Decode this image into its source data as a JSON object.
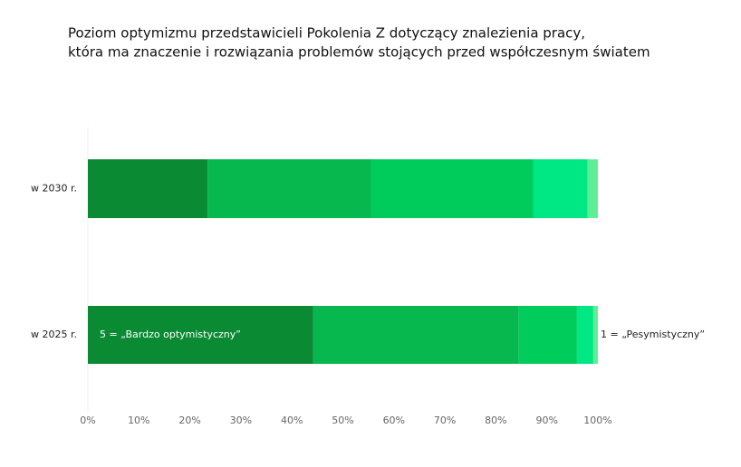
{
  "chart_data": {
    "type": "stacked-barh",
    "title": [
      "Poziom optymizmu przedstawicieli Pokolenia Z dotyczący znalezienia pracy,",
      "która ma znaczenie i rozwiązania problemów stojących przed współczesnym światem"
    ],
    "categories": [
      "w 2030 r.",
      "w 2025 r."
    ],
    "series": [
      {
        "color": "#0b8a34",
        "values": [
          23.5,
          44.2
        ]
      },
      {
        "color": "#06b84e",
        "values": [
          32.0,
          40.3
        ]
      },
      {
        "color": "#00cc5c",
        "values": [
          31.8,
          11.4
        ]
      },
      {
        "color": "#00e884",
        "values": [
          10.7,
          3.2
        ]
      },
      {
        "color": "#5fee98",
        "values": [
          2.0,
          0.9
        ]
      }
    ],
    "annotations": [
      "5 = „Bardzo optymistyczny”",
      "1 = „Pesymistyczny”"
    ],
    "xlim": [
      0,
      100
    ],
    "xticks": [
      {
        "value": 0,
        "label": "0%"
      },
      {
        "value": 10,
        "label": "10%"
      },
      {
        "value": 20,
        "label": "20%"
      },
      {
        "value": 30,
        "label": "30%"
      },
      {
        "value": 40,
        "label": "40%"
      },
      {
        "value": 50,
        "label": "50%"
      },
      {
        "value": 60,
        "label": "60%"
      },
      {
        "value": 70,
        "label": "70%"
      },
      {
        "value": 80,
        "label": "80%"
      },
      {
        "value": 90,
        "label": "90%"
      },
      {
        "value": 100,
        "label": "100%"
      }
    ]
  }
}
